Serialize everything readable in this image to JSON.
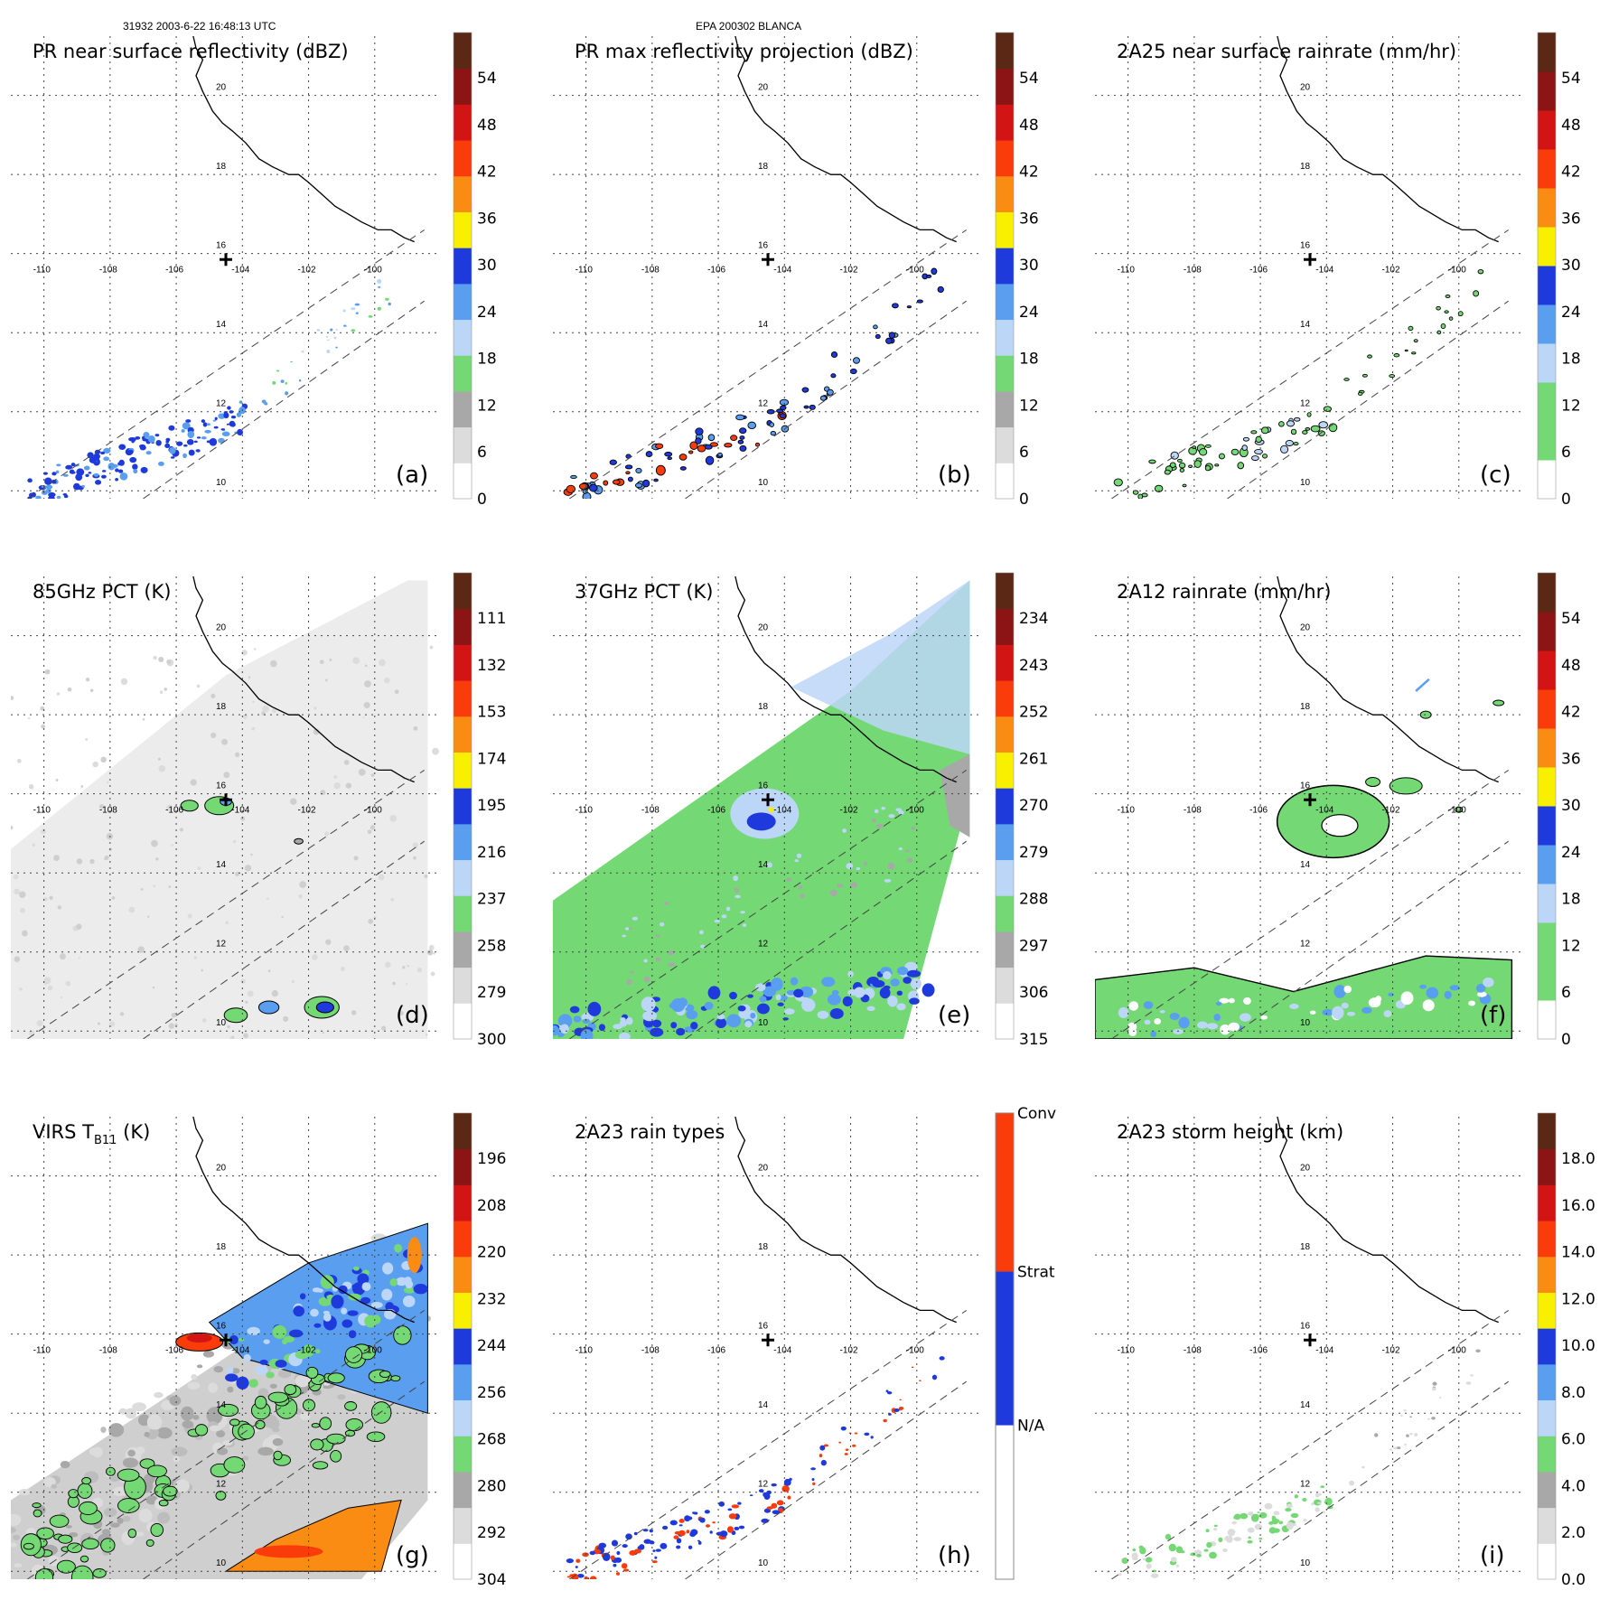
{
  "header": {
    "left": "31932 2003-6-22 16:48:13 UTC",
    "center": "EPA 200302 BLANCA"
  },
  "colors": {
    "white": "#ffffff",
    "gray_light": "#dcdcdc",
    "gray": "#a8a8a8",
    "green": "#74d874",
    "blue_light": "#bcd6f8",
    "blue_mid": "#5a9ef0",
    "blue": "#1e3adc",
    "yellow": "#f8f000",
    "orange": "#fa8c14",
    "red_orange": "#fa3c0a",
    "red": "#d21414",
    "dark_red": "#8c1414",
    "maroon": "#5a2814"
  },
  "chart_data": [
    {
      "id": "a",
      "type": "heatmap",
      "title": "PR near surface reflectivity (dBZ)",
      "label": "(a)",
      "colorbar": {
        "ticks": [
          "54",
          "48",
          "42",
          "36",
          "30",
          "24",
          "18",
          "12",
          "6",
          "0"
        ],
        "range": [
          0,
          60
        ]
      },
      "x_ticks": [
        "-110",
        "-108",
        "-106",
        "-104",
        "-102",
        "-100"
      ],
      "y_ticks": [
        "20",
        "18",
        "16",
        "14",
        "12",
        "10"
      ],
      "lon_range": [
        -111,
        -98
      ],
      "lat_range": [
        9.8,
        21.5
      ]
    },
    {
      "id": "b",
      "type": "heatmap",
      "title": "PR max reflectivity projection (dBZ)",
      "label": "(b)",
      "colorbar": {
        "ticks": [
          "54",
          "48",
          "42",
          "36",
          "30",
          "24",
          "18",
          "12",
          "6",
          "0"
        ],
        "range": [
          0,
          60
        ]
      },
      "x_ticks": [
        "-110",
        "-108",
        "-106",
        "-104",
        "-102",
        "-100"
      ],
      "y_ticks": [
        "20",
        "18",
        "16",
        "14",
        "12",
        "10"
      ],
      "lon_range": [
        -111,
        -98
      ],
      "lat_range": [
        9.8,
        21.5
      ]
    },
    {
      "id": "c",
      "type": "heatmap",
      "title": "2A25 near surface rainrate (mm/hr)",
      "label": "(c)",
      "colorbar": {
        "ticks": [
          "54",
          "48",
          "42",
          "36",
          "30",
          "24",
          "18",
          "12",
          "6",
          "0"
        ],
        "range": [
          0,
          60
        ]
      },
      "x_ticks": [
        "-110",
        "-108",
        "-106",
        "-104",
        "-102",
        "-100"
      ],
      "y_ticks": [
        "20",
        "18",
        "16",
        "14",
        "12",
        "10"
      ],
      "lon_range": [
        -111,
        -98
      ],
      "lat_range": [
        9.8,
        21.5
      ]
    },
    {
      "id": "d",
      "type": "heatmap",
      "title": "85GHz PCT (K)",
      "label": "(d)",
      "colorbar": {
        "ticks": [
          "111",
          "132",
          "153",
          "174",
          "195",
          "216",
          "237",
          "258",
          "279",
          "300"
        ],
        "range": [
          90,
          300
        ]
      },
      "x_ticks": [
        "-110",
        "-108",
        "-106",
        "-104",
        "-102",
        "-100"
      ],
      "y_ticks": [
        "20",
        "18",
        "16",
        "14",
        "12",
        "10"
      ],
      "lon_range": [
        -111,
        -98
      ],
      "lat_range": [
        9.8,
        21.5
      ]
    },
    {
      "id": "e",
      "type": "heatmap",
      "title": "37GHz PCT (K)",
      "label": "(e)",
      "colorbar": {
        "ticks": [
          "234",
          "243",
          "252",
          "261",
          "270",
          "279",
          "288",
          "297",
          "306",
          "315"
        ],
        "range": [
          225,
          315
        ]
      },
      "x_ticks": [
        "-110",
        "-108",
        "-106",
        "-104",
        "-102",
        "-100"
      ],
      "y_ticks": [
        "20",
        "18",
        "16",
        "14",
        "12",
        "10"
      ],
      "lon_range": [
        -111,
        -98
      ],
      "lat_range": [
        9.8,
        21.5
      ]
    },
    {
      "id": "f",
      "type": "heatmap",
      "title": "2A12 rainrate (mm/hr)",
      "label": "(f)",
      "colorbar": {
        "ticks": [
          "54",
          "48",
          "42",
          "36",
          "30",
          "24",
          "18",
          "12",
          "6",
          "0"
        ],
        "range": [
          0,
          60
        ]
      },
      "x_ticks": [
        "-110",
        "-108",
        "-106",
        "-104",
        "-102",
        "-100"
      ],
      "y_ticks": [
        "20",
        "18",
        "16",
        "14",
        "12",
        "10"
      ],
      "lon_range": [
        -111,
        -98
      ],
      "lat_range": [
        9.8,
        21.5
      ]
    },
    {
      "id": "g",
      "type": "heatmap",
      "title_main": "VIRS T",
      "title_sub": "B11",
      "title_tail": " (K)",
      "label": "(g)",
      "colorbar": {
        "ticks": [
          "196",
          "208",
          "220",
          "232",
          "244",
          "256",
          "268",
          "280",
          "292",
          "304"
        ],
        "range": [
          184,
          304
        ]
      },
      "x_ticks": [
        "-110",
        "-108",
        "-106",
        "-104",
        "-102",
        "-100"
      ],
      "y_ticks": [
        "20",
        "18",
        "16",
        "14",
        "12",
        "10"
      ],
      "lon_range": [
        -111,
        -98
      ],
      "lat_range": [
        9.8,
        21.5
      ]
    },
    {
      "id": "h",
      "type": "heatmap",
      "title": "2A23 rain types",
      "label": "(h)",
      "colorbar": {
        "ticks": [
          "Conv",
          "Strat",
          "N/A"
        ],
        "categorical": true
      },
      "x_ticks": [
        "-110",
        "-108",
        "-106",
        "-104",
        "-102",
        "-100"
      ],
      "y_ticks": [
        "20",
        "18",
        "16",
        "14",
        "12",
        "10"
      ],
      "lon_range": [
        -111,
        -98
      ],
      "lat_range": [
        9.8,
        21.5
      ]
    },
    {
      "id": "i",
      "type": "heatmap",
      "title": "2A23 storm height (km)",
      "label": "(i)",
      "colorbar": {
        "ticks": [
          "18.0",
          "16.0",
          "14.0",
          "12.0",
          "10.0",
          "8.0",
          "6.0",
          "4.0",
          "2.0",
          "0.0"
        ],
        "range": [
          0,
          20
        ]
      },
      "x_ticks": [
        "-110",
        "-108",
        "-106",
        "-104",
        "-102",
        "-100"
      ],
      "y_ticks": [
        "20",
        "18",
        "16",
        "14",
        "12",
        "10"
      ],
      "lon_range": [
        -111,
        -98
      ],
      "lat_range": [
        9.8,
        21.5
      ]
    }
  ]
}
